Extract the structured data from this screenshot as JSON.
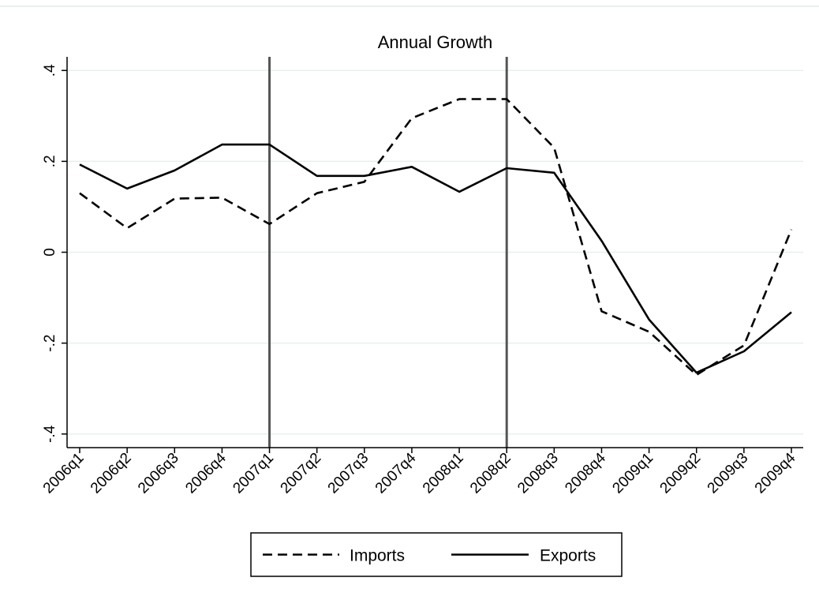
{
  "chart_data": {
    "type": "line",
    "title": "Annual Growth",
    "xlabel": "",
    "ylabel": "",
    "categories": [
      "2006q1",
      "2006q2",
      "2006q3",
      "2006q4",
      "2007q1",
      "2007q2",
      "2007q3",
      "2007q4",
      "2008q1",
      "2008q2",
      "2008q3",
      "2008q4",
      "2009q1",
      "2009q2",
      "2009q3",
      "2009q4"
    ],
    "y_ticks": [
      {
        "value": 0.4,
        "label": ".4"
      },
      {
        "value": 0.2,
        "label": ".2"
      },
      {
        "value": 0,
        "label": "0"
      },
      {
        "value": -0.2,
        "label": "-.2"
      },
      {
        "value": -0.4,
        "label": "-.4"
      }
    ],
    "ylim": [
      -0.43,
      0.43
    ],
    "grid": true,
    "series": [
      {
        "name": "Imports",
        "style": "dashed",
        "values": [
          0.13,
          0.053,
          0.118,
          0.12,
          0.062,
          0.13,
          0.155,
          0.295,
          0.337,
          0.337,
          0.23,
          -0.13,
          -0.175,
          -0.27,
          -0.205,
          0.05
        ]
      },
      {
        "name": "Exports",
        "style": "solid",
        "values": [
          0.193,
          0.14,
          0.18,
          0.237,
          0.237,
          0.168,
          0.168,
          0.188,
          0.133,
          0.185,
          0.175,
          0.025,
          -0.148,
          -0.265,
          -0.218,
          -0.132
        ]
      }
    ],
    "vertical_lines_at": [
      "2007q1",
      "2008q2"
    ],
    "legend": {
      "position": "bottom",
      "items": [
        "Imports",
        "Exports"
      ]
    },
    "colors": {
      "line": "#000000",
      "grid": "#e8efef",
      "vline": "#555555"
    }
  }
}
